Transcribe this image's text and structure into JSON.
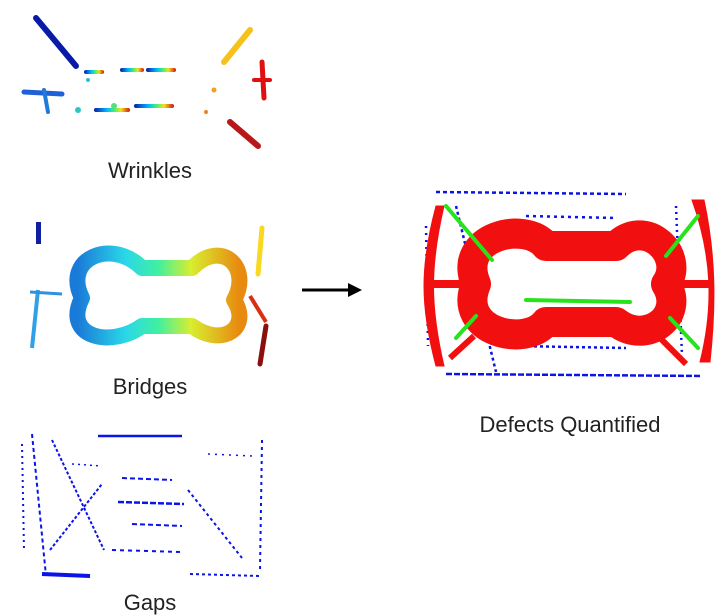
{
  "panels": {
    "wrinkles": {
      "label": "Wrinkles"
    },
    "bridges": {
      "label": "Bridges"
    },
    "gaps": {
      "label": "Gaps"
    },
    "result": {
      "label": "Defects Quantified"
    }
  },
  "colors": {
    "gaps_blue": "#0a14e6",
    "defect_red": "#f20f0f",
    "wrinkle_green": "#27e31c",
    "arrow": "#000000"
  }
}
